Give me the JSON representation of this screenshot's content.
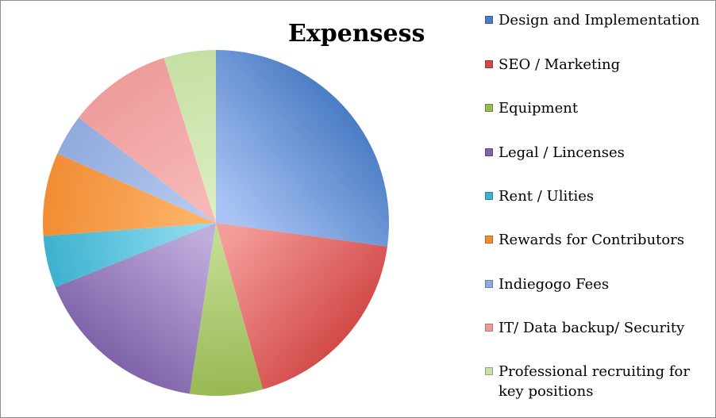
{
  "chart_data": {
    "type": "pie",
    "title": "Expensess",
    "legend_position": "right",
    "categories": [
      "Design and Implementation",
      "SEO / Marketing",
      "Equipment",
      "Legal / Lincenses",
      "Rent / Ulities",
      "Rewards for Contributors",
      "Indiegogo Fees",
      "IT/ Data backup/ Security",
      "Professional recruiting for key positions"
    ],
    "values": [
      28,
      19,
      7,
      17,
      5,
      8,
      4,
      10,
      5
    ],
    "colors": [
      "#4a7cc4",
      "#d24a48",
      "#98b954",
      "#7f62a8",
      "#3db1cf",
      "#f18c33",
      "#8faadc",
      "#ee9c9a",
      "#c6e0a4"
    ],
    "light_colors": [
      "#a8c3f3",
      "#f49d9b",
      "#c2dc92",
      "#c0aedd",
      "#8fdcf0",
      "#fcb46a",
      "#b6c9f0",
      "#f6b9b7",
      "#dcedc0"
    ]
  }
}
